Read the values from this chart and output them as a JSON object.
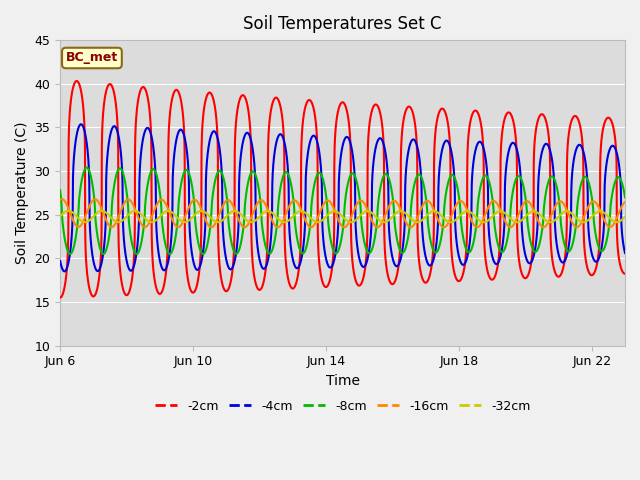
{
  "title": "Soil Temperatures Set C",
  "xlabel": "Time",
  "ylabel": "Soil Temperature (C)",
  "ylim": [
    10,
    45
  ],
  "yticks": [
    10,
    15,
    20,
    25,
    30,
    35,
    40,
    45
  ],
  "annotation": "BC_met",
  "plot_bg": "#dcdcdc",
  "fig_bg": "#f0f0f0",
  "series": [
    {
      "label": "-2cm",
      "color": "#ff0000",
      "amplitude": 12.5,
      "mean": 28.0,
      "period": 1.0,
      "phase": 0.25,
      "decay": 0.02,
      "mean_decay": 0.12,
      "sharpness": 4.0
    },
    {
      "label": "-4cm",
      "color": "#0000dd",
      "amplitude": 8.5,
      "mean": 27.0,
      "period": 1.0,
      "phase": 0.38,
      "decay": 0.015,
      "mean_decay": 0.1,
      "sharpness": 2.5
    },
    {
      "label": "-8cm",
      "color": "#00bb00",
      "amplitude": 5.0,
      "mean": 25.5,
      "period": 1.0,
      "phase": 0.55,
      "decay": 0.01,
      "mean_decay": 0.06,
      "sharpness": 1.5
    },
    {
      "label": "-16cm",
      "color": "#ff8800",
      "amplitude": 1.6,
      "mean": 25.2,
      "period": 1.0,
      "phase": 0.8,
      "decay": 0.005,
      "mean_decay": 0.02,
      "sharpness": 1.0
    },
    {
      "label": "-32cm",
      "color": "#cccc00",
      "amplitude": 0.65,
      "mean": 24.8,
      "period": 1.0,
      "phase": 0.0,
      "decay": 0.002,
      "mean_decay": 0.005,
      "sharpness": 1.0
    }
  ],
  "linewidth": 1.5,
  "grid_color": "#ffffff",
  "grid_linewidth": 0.8
}
